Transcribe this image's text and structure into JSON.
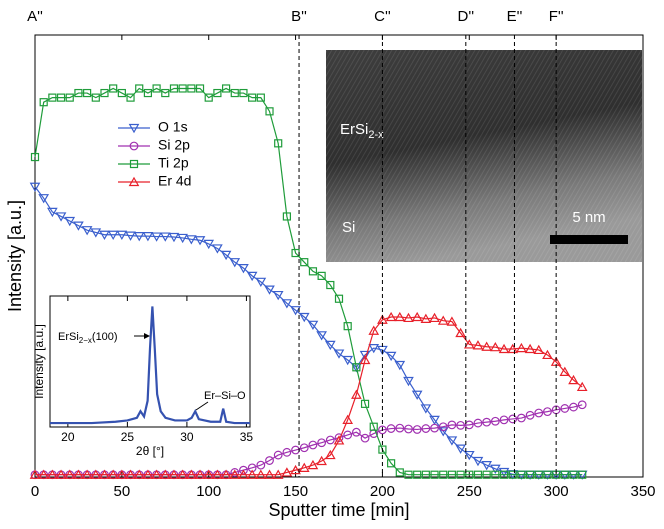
{
  "chart_data": [
    {
      "type": "line",
      "xlabel": "Sputter time [min]",
      "ylabel": "Intensity [a.u.]",
      "xlim": [
        0,
        350
      ],
      "xticks": [
        0,
        50,
        100,
        150,
        200,
        250,
        300,
        350
      ],
      "ylim": [
        0,
        96.7
      ],
      "legend": "left",
      "x": [
        0,
        5,
        10,
        15,
        20,
        25,
        30,
        35,
        40,
        45,
        50,
        55,
        60,
        65,
        70,
        75,
        80,
        85,
        90,
        95,
        100,
        105,
        110,
        115,
        120,
        125,
        130,
        135,
        140,
        145,
        150,
        155,
        160,
        165,
        170,
        175,
        180,
        185,
        190,
        195,
        200,
        205,
        210,
        215,
        220,
        225,
        230,
        235,
        240,
        245,
        250,
        255,
        260,
        265,
        270,
        275,
        280,
        285,
        290,
        295,
        300,
        305,
        310,
        315
      ],
      "series": [
        {
          "name": "O 1s",
          "color": "#3a5fcd",
          "marker": "v",
          "values": [
            63.5,
            61,
            58,
            57,
            56,
            55,
            54,
            53.5,
            53,
            53,
            53,
            52.8,
            52.7,
            52.7,
            52.6,
            52.6,
            52.5,
            52.3,
            52,
            51.8,
            51,
            50,
            48.6,
            47,
            45.7,
            44,
            42.7,
            41,
            39.8,
            38,
            36.5,
            35,
            33.3,
            31,
            28.9,
            27,
            25.6,
            24,
            26.7,
            28.2,
            27.8,
            26.5,
            24.5,
            21,
            18,
            15,
            12.5,
            10,
            8,
            6.2,
            4.8,
            3.5,
            2.6,
            1.8,
            1.1,
            0.6,
            0.5,
            0.5,
            0.5,
            0.5,
            0.5,
            0.5,
            0.5,
            0.5
          ]
        },
        {
          "name": "Si 2p",
          "color": "#a030b0",
          "marker": "o",
          "values": [
            0.5,
            0.5,
            0.5,
            0.5,
            0.5,
            0.5,
            0.5,
            0.5,
            0.5,
            0.5,
            0.5,
            0.5,
            0.5,
            0.5,
            0.5,
            0.5,
            0.5,
            0.5,
            0.5,
            0.5,
            0.5,
            0.5,
            0.5,
            1,
            1.5,
            2,
            2.6,
            3.6,
            4.8,
            5.4,
            5.9,
            6.4,
            7,
            7.5,
            8.1,
            8.6,
            9.2,
            9.8,
            8.5,
            9.5,
            10.3,
            10.6,
            10.7,
            10.5,
            10.4,
            10.6,
            10.7,
            11,
            11.4,
            11.3,
            11.4,
            11.8,
            12,
            12.2,
            12.5,
            12.7,
            12.9,
            13.5,
            14,
            14.3,
            14.7,
            15,
            15.3,
            15.8
          ]
        },
        {
          "name": "Ti 2p",
          "color": "#1f9c3a",
          "marker": "s",
          "values": [
            70,
            82,
            83,
            83,
            83,
            84,
            84,
            83,
            84,
            85,
            84,
            83,
            85,
            84,
            85,
            84,
            85,
            85,
            85,
            85,
            83,
            84,
            85,
            84,
            84,
            83,
            83,
            80,
            73,
            57,
            49,
            47,
            45,
            44,
            42,
            39,
            33,
            24,
            16,
            11,
            6,
            3,
            1,
            0.5,
            0.5,
            0.5,
            0.5,
            0.5,
            0.5,
            0.5,
            0.5,
            0.5,
            0.5,
            0.5,
            0.5,
            0.5,
            0.5,
            0.5,
            0.5,
            0.5,
            0.5,
            0.5,
            0.5,
            0.5
          ]
        },
        {
          "name": "Er 4d",
          "color": "#e8202a",
          "marker": "^",
          "values": [
            0.5,
            0.5,
            0.5,
            0.5,
            0.5,
            0.5,
            0.5,
            0.5,
            0.5,
            0.5,
            0.5,
            0.5,
            0.5,
            0.5,
            0.5,
            0.5,
            0.5,
            0.5,
            0.5,
            0.5,
            0.5,
            0.5,
            0.5,
            0.5,
            0.5,
            0.5,
            0.5,
            0.5,
            0.5,
            1,
            1.5,
            2,
            2.6,
            3.5,
            4.8,
            8,
            12.5,
            18,
            25.6,
            32,
            34.4,
            35,
            35,
            34.8,
            35,
            34.6,
            34.8,
            34.2,
            34,
            31.5,
            29,
            28.8,
            28.5,
            28.4,
            28,
            28,
            28.2,
            28,
            27.8,
            26.7,
            25.2,
            23,
            21.2,
            19.7
          ]
        }
      ],
      "markers": [
        {
          "label": "A''",
          "x": 0
        },
        {
          "label": "B''",
          "x": 152
        },
        {
          "label": "C''",
          "x": 200
        },
        {
          "label": "D''",
          "x": 248
        },
        {
          "label": "E''",
          "x": 276
        },
        {
          "label": "F''",
          "x": 300
        }
      ]
    },
    {
      "type": "line",
      "xlabel": "2θ [°]",
      "ylabel": "Intensity [a.u.]",
      "xlim": [
        18.5,
        35.3
      ],
      "xticks": [
        20,
        25,
        30,
        35
      ],
      "ylim": [
        0,
        100
      ],
      "x": [
        18.5,
        20,
        22,
        24,
        25,
        25.8,
        26.1,
        26.4,
        26.7,
        26.9,
        27.1,
        27.3,
        27.5,
        27.8,
        28.2,
        29,
        30,
        30.4,
        30.7,
        31,
        32,
        32.8,
        33.05,
        33.3,
        34,
        35.3
      ],
      "series": [
        {
          "color": "#3552b0",
          "values": [
            3,
            3,
            3,
            4,
            5,
            7,
            12,
            8,
            20,
            60,
            92,
            60,
            25,
            12,
            7,
            5,
            5,
            7,
            12,
            6,
            4,
            4,
            14,
            4,
            3,
            3
          ]
        }
      ],
      "annotations": [
        {
          "text": "ErSi",
          "sub": "2−x",
          "tail": "(100)"
        },
        {
          "text": "Er–Si–O"
        }
      ]
    }
  ],
  "tem_image": {
    "phase_top": {
      "text": "ErSi",
      "sub": "2-x"
    },
    "phase_bottom": "Si",
    "scale_bar": "5 nm"
  }
}
